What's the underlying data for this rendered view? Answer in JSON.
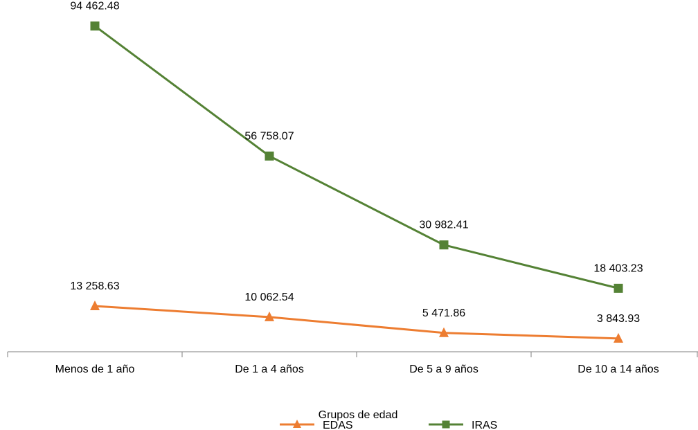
{
  "chart_data": {
    "type": "line",
    "categories": [
      "Menos de 1 año",
      "De 1 a 4 años",
      "De 5 a 9 años",
      "De 10 a 14 años"
    ],
    "series": [
      {
        "name": "EDAS",
        "values": [
          13258.63,
          10062.54,
          5471.86,
          3843.93
        ],
        "labels": [
          "13 258.63",
          "10 062.54",
          "5 471.86",
          "3 843.93"
        ],
        "color": "#ED7D31",
        "marker": "triangle"
      },
      {
        "name": "IRAS",
        "values": [
          94462.48,
          56758.07,
          30982.41,
          18403.23
        ],
        "labels": [
          "94 462.48",
          "56 758.07",
          "30 982.41",
          "18 403.23"
        ],
        "color": "#548235",
        "marker": "square"
      }
    ],
    "xlabel": "Grupos de edad",
    "ylabel": "",
    "ylim": [
      0,
      100000
    ],
    "grid": false,
    "legend_position": "bottom"
  }
}
